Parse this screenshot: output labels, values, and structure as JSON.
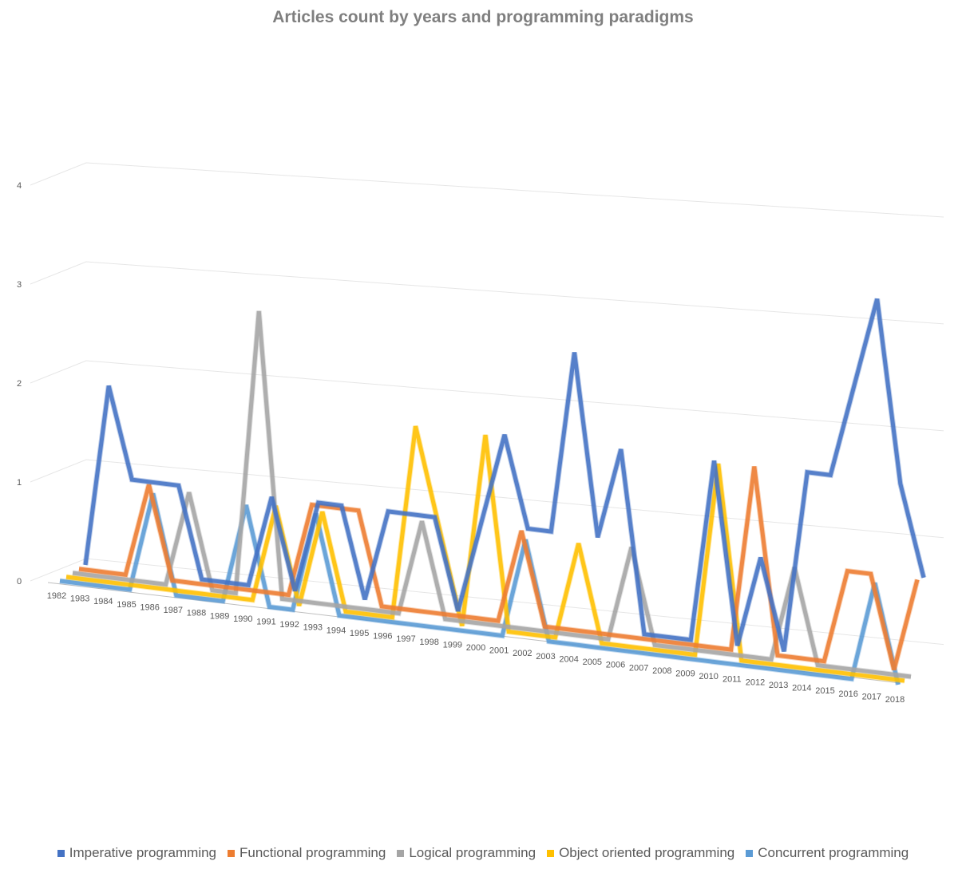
{
  "chart_data": {
    "type": "line",
    "title": "Articles count by years and programming paradigms",
    "xlabel": "",
    "ylabel": "",
    "ylim": [
      0,
      4
    ],
    "yticks": [
      0,
      1,
      2,
      3,
      4
    ],
    "grid": true,
    "legend_position": "bottom",
    "x": [
      "1982",
      "1983",
      "1984",
      "1985",
      "1986",
      "1987",
      "1988",
      "1989",
      "1990",
      "1991",
      "1992",
      "1993",
      "1994",
      "1995",
      "1996",
      "1997",
      "1998",
      "1999",
      "2000",
      "2001",
      "2002",
      "2003",
      "2004",
      "2005",
      "2006",
      "2007",
      "2008",
      "2009",
      "2010",
      "2011",
      "2012",
      "2013",
      "2014",
      "2015",
      "2016",
      "2017",
      "2018"
    ],
    "series": [
      {
        "name": "Imperative programming",
        "color": "#4472c4",
        "values": [
          0,
          2,
          1,
          1,
          1,
          0,
          0,
          0,
          1,
          0,
          1,
          1,
          0,
          1,
          1,
          1,
          0,
          1,
          2,
          1,
          1,
          3,
          1,
          2,
          0,
          0,
          0,
          2,
          0,
          1,
          0,
          2,
          2,
          3,
          4,
          2,
          1
        ]
      },
      {
        "name": "Functional programming",
        "color": "#ed7d31",
        "values": [
          0,
          0,
          0,
          1,
          0,
          0,
          0,
          0,
          0,
          0,
          1,
          1,
          1,
          0,
          0,
          0,
          0,
          0,
          0,
          1,
          0,
          0,
          0,
          0,
          0,
          0,
          0,
          0,
          0,
          2,
          0,
          0,
          0,
          1,
          1,
          0,
          1
        ]
      },
      {
        "name": "Logical programming",
        "color": "#a5a5a5",
        "values": [
          0,
          0,
          0,
          0,
          0,
          1,
          0,
          0,
          3,
          0,
          0,
          0,
          0,
          0,
          0,
          1,
          0,
          0,
          0,
          0,
          0,
          0,
          0,
          0,
          1,
          0,
          0,
          0,
          0,
          0,
          0,
          1,
          0,
          0,
          0,
          0,
          0
        ]
      },
      {
        "name": "Object oriented programming",
        "color": "#ffc000",
        "values": [
          0,
          0,
          0,
          0,
          0,
          0,
          0,
          0,
          0,
          1,
          0,
          1,
          0,
          0,
          0,
          2,
          1,
          0,
          2,
          0,
          0,
          0,
          1,
          0,
          0,
          0,
          0,
          0,
          2,
          0,
          0,
          0,
          0,
          0,
          0,
          0,
          0
        ]
      },
      {
        "name": "Concurrent programming",
        "color": "#5b9bd5",
        "values": [
          0,
          0,
          0,
          0,
          1,
          0,
          0,
          0,
          1,
          0,
          0,
          1,
          0,
          0,
          0,
          0,
          0,
          0,
          0,
          0,
          1,
          0,
          0,
          0,
          0,
          0,
          0,
          0,
          0,
          0,
          0,
          0,
          0,
          0,
          0,
          1,
          0
        ]
      }
    ]
  }
}
